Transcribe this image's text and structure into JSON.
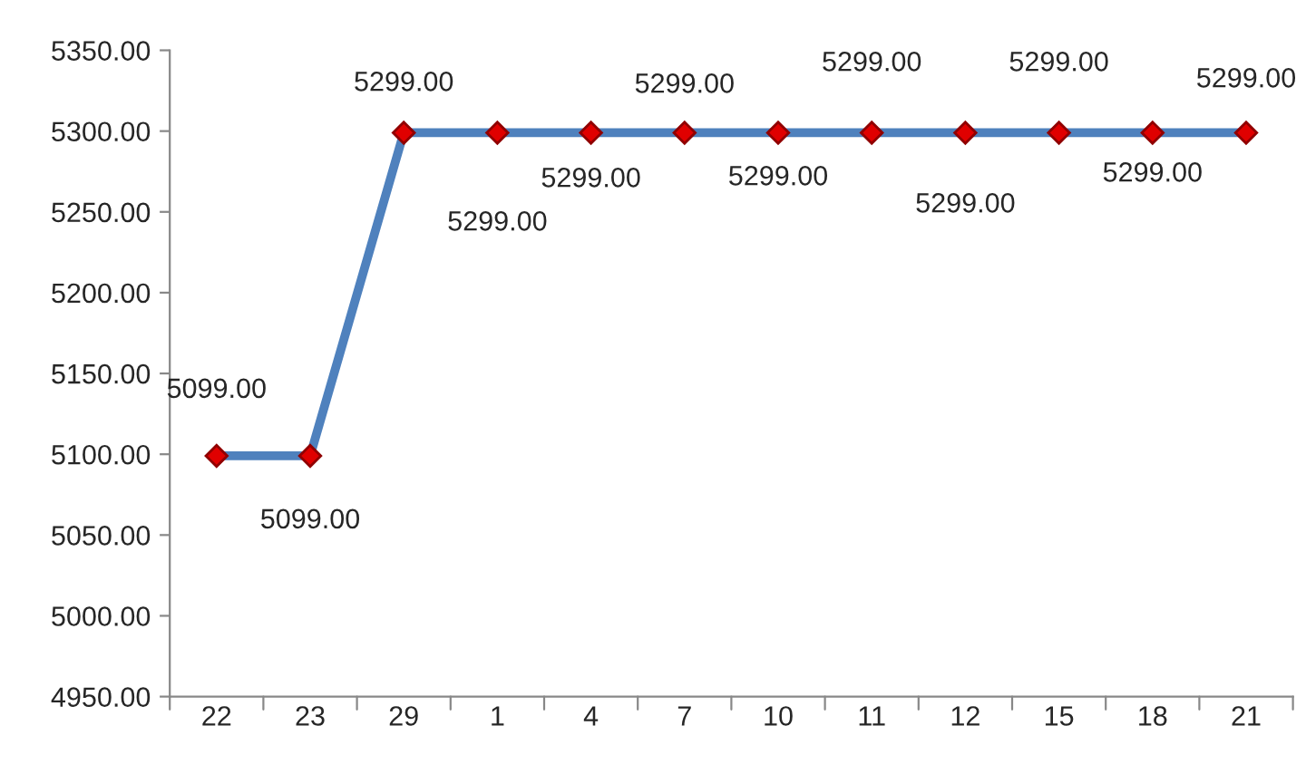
{
  "chart_data": {
    "type": "line",
    "categories": [
      "22",
      "23",
      "29",
      "1",
      "4",
      "7",
      "10",
      "11",
      "12",
      "15",
      "18",
      "21"
    ],
    "series": [
      {
        "color": "#4f81bd",
        "values": [
          5099,
          5099,
          5299,
          5299,
          5299,
          5299,
          5299,
          5299,
          5299,
          5299,
          5299,
          5299
        ],
        "value_labels": [
          "5099.00",
          "5099.00",
          "5299.00",
          "5299.00",
          "5299.00",
          "5299.00",
          "5299.00",
          "5299.00",
          "5299.00",
          "5299.00",
          "5299.00",
          "5299.00"
        ]
      }
    ],
    "ylim": [
      4950,
      5350
    ],
    "yticks": [
      {
        "value": 4950,
        "label": "4950.00"
      },
      {
        "value": 5000,
        "label": "5000.00"
      },
      {
        "value": 5050,
        "label": "5050.00"
      },
      {
        "value": 5100,
        "label": "5100.00"
      },
      {
        "value": 5150,
        "label": "5150.00"
      },
      {
        "value": 5200,
        "label": "5200.00"
      },
      {
        "value": 5250,
        "label": "5250.00"
      },
      {
        "value": 5300,
        "label": "5300.00"
      },
      {
        "value": 5350,
        "label": "5350.00"
      }
    ],
    "marker": "diamond",
    "grid": false,
    "legend": false
  }
}
